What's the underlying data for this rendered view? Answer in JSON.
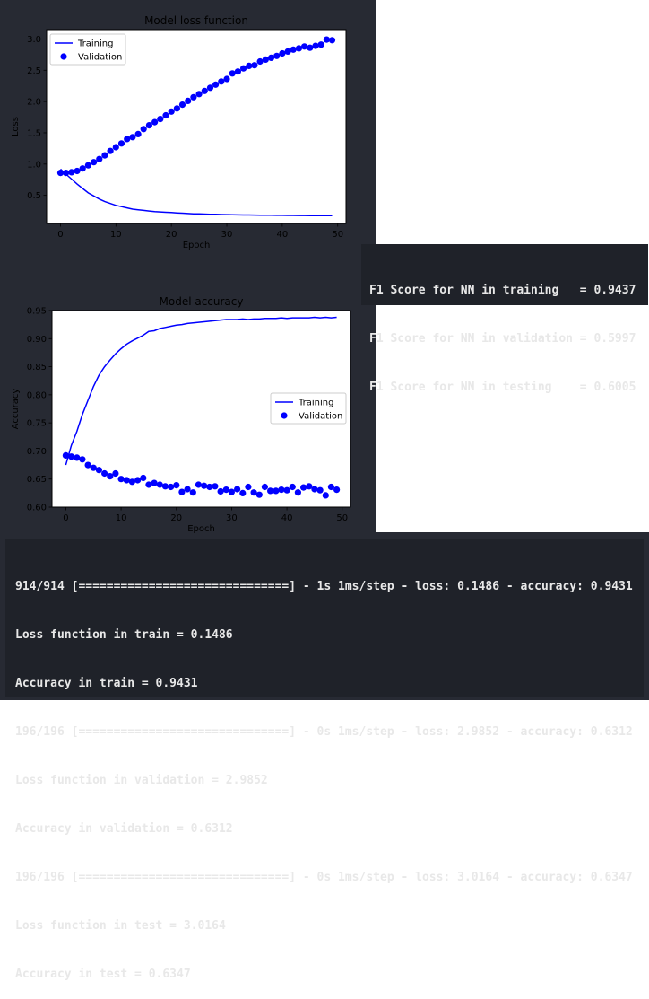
{
  "chart_data": [
    {
      "type": "line",
      "title": "Model loss function",
      "xlabel": "Epoch",
      "ylabel": "Loss",
      "xlim": [
        -2.5,
        51.5
      ],
      "ylim": [
        0.05,
        3.15
      ],
      "xticks": [
        0,
        10,
        20,
        30,
        40,
        50
      ],
      "yticks": [
        0.5,
        1.0,
        1.5,
        2.0,
        2.5,
        3.0
      ],
      "ytick_labels": [
        "0.5",
        "1.0",
        "1.5",
        "2.0",
        "2.5",
        "3.0"
      ],
      "legend": "upper-left",
      "grid": false,
      "series": [
        {
          "name": "Training",
          "style": "line",
          "color": "#0000ff",
          "x": [
            0,
            1,
            2,
            3,
            4,
            5,
            6,
            7,
            8,
            9,
            10,
            11,
            12,
            13,
            14,
            15,
            16,
            17,
            18,
            19,
            20,
            21,
            22,
            23,
            24,
            25,
            26,
            27,
            28,
            29,
            30,
            31,
            32,
            33,
            34,
            35,
            36,
            37,
            38,
            39,
            40,
            41,
            42,
            43,
            44,
            45,
            46,
            47,
            48,
            49
          ],
          "y": [
            0.92,
            0.84,
            0.76,
            0.68,
            0.61,
            0.54,
            0.49,
            0.44,
            0.4,
            0.37,
            0.34,
            0.32,
            0.3,
            0.28,
            0.27,
            0.26,
            0.25,
            0.24,
            0.235,
            0.23,
            0.225,
            0.22,
            0.215,
            0.21,
            0.205,
            0.203,
            0.2,
            0.198,
            0.196,
            0.194,
            0.192,
            0.19,
            0.188,
            0.187,
            0.186,
            0.185,
            0.184,
            0.183,
            0.182,
            0.181,
            0.18,
            0.179,
            0.179,
            0.178,
            0.178,
            0.177,
            0.177,
            0.176,
            0.176,
            0.176
          ]
        },
        {
          "name": "Validation",
          "style": "scatter",
          "color": "#0000ff",
          "x": [
            0,
            1,
            2,
            3,
            4,
            5,
            6,
            7,
            8,
            9,
            10,
            11,
            12,
            13,
            14,
            15,
            16,
            17,
            18,
            19,
            20,
            21,
            22,
            23,
            24,
            25,
            26,
            27,
            28,
            29,
            30,
            31,
            32,
            33,
            34,
            35,
            36,
            37,
            38,
            39,
            40,
            41,
            42,
            43,
            44,
            45,
            46,
            47,
            48,
            49
          ],
          "y": [
            0.86,
            0.86,
            0.87,
            0.89,
            0.93,
            0.98,
            1.03,
            1.08,
            1.14,
            1.21,
            1.27,
            1.33,
            1.4,
            1.43,
            1.48,
            1.56,
            1.62,
            1.67,
            1.72,
            1.78,
            1.84,
            1.89,
            1.95,
            2.01,
            2.07,
            2.12,
            2.17,
            2.22,
            2.27,
            2.32,
            2.36,
            2.45,
            2.48,
            2.53,
            2.57,
            2.58,
            2.64,
            2.67,
            2.7,
            2.73,
            2.77,
            2.8,
            2.83,
            2.85,
            2.88,
            2.86,
            2.89,
            2.91,
            2.99,
            2.98
          ]
        }
      ]
    },
    {
      "type": "line",
      "title": "Model accuracy",
      "xlabel": "Epoch",
      "ylabel": "Accuracy",
      "xlim": [
        -2.5,
        51.5
      ],
      "ylim": [
        0.6,
        0.95
      ],
      "xticks": [
        0,
        10,
        20,
        30,
        40,
        50
      ],
      "yticks": [
        0.6,
        0.65,
        0.7,
        0.75,
        0.8,
        0.85,
        0.9,
        0.95
      ],
      "ytick_labels": [
        "0.60",
        "0.65",
        "0.70",
        "0.75",
        "0.80",
        "0.85",
        "0.90",
        "0.95"
      ],
      "legend": "center-right",
      "grid": false,
      "series": [
        {
          "name": "Training",
          "style": "line",
          "color": "#0000ff",
          "x": [
            0,
            1,
            2,
            3,
            4,
            5,
            6,
            7,
            8,
            9,
            10,
            11,
            12,
            13,
            14,
            15,
            16,
            17,
            18,
            19,
            20,
            21,
            22,
            23,
            24,
            25,
            26,
            27,
            28,
            29,
            30,
            31,
            32,
            33,
            34,
            35,
            36,
            37,
            38,
            39,
            40,
            41,
            42,
            43,
            44,
            45,
            46,
            47,
            48,
            49
          ],
          "y": [
            0.675,
            0.71,
            0.735,
            0.765,
            0.79,
            0.815,
            0.835,
            0.85,
            0.862,
            0.873,
            0.882,
            0.89,
            0.896,
            0.901,
            0.906,
            0.913,
            0.914,
            0.918,
            0.92,
            0.922,
            0.924,
            0.925,
            0.927,
            0.928,
            0.929,
            0.93,
            0.931,
            0.932,
            0.933,
            0.934,
            0.934,
            0.934,
            0.935,
            0.934,
            0.935,
            0.935,
            0.936,
            0.936,
            0.936,
            0.937,
            0.936,
            0.937,
            0.937,
            0.937,
            0.937,
            0.938,
            0.937,
            0.938,
            0.937,
            0.938
          ]
        },
        {
          "name": "Validation",
          "style": "scatter",
          "color": "#0000ff",
          "x": [
            0,
            1,
            2,
            3,
            4,
            5,
            6,
            7,
            8,
            9,
            10,
            11,
            12,
            13,
            14,
            15,
            16,
            17,
            18,
            19,
            20,
            21,
            22,
            23,
            24,
            25,
            26,
            27,
            28,
            29,
            30,
            31,
            32,
            33,
            34,
            35,
            36,
            37,
            38,
            39,
            40,
            41,
            42,
            43,
            44,
            45,
            46,
            47,
            48,
            49
          ],
          "y": [
            0.692,
            0.69,
            0.688,
            0.685,
            0.675,
            0.67,
            0.666,
            0.66,
            0.655,
            0.66,
            0.65,
            0.648,
            0.645,
            0.648,
            0.652,
            0.64,
            0.643,
            0.64,
            0.637,
            0.636,
            0.639,
            0.627,
            0.632,
            0.626,
            0.64,
            0.638,
            0.636,
            0.637,
            0.628,
            0.631,
            0.627,
            0.632,
            0.625,
            0.636,
            0.626,
            0.622,
            0.636,
            0.629,
            0.629,
            0.631,
            0.63,
            0.636,
            0.626,
            0.635,
            0.637,
            0.632,
            0.63,
            0.621,
            0.636,
            0.631
          ]
        }
      ]
    }
  ],
  "f1_output": [
    "F1 Score for NN in training   = 0.9437",
    "F1 Score for NN in validation = 0.5997",
    "F1 Score for NN in testing    = 0.6005"
  ],
  "eval_output": [
    "914/914 [==============================] - 1s 1ms/step - loss: 0.1486 - accuracy: 0.9431",
    "Loss function in train = 0.1486",
    "Accuracy in train = 0.9431",
    "196/196 [==============================] - 0s 1ms/step - loss: 2.9852 - accuracy: 0.6312",
    "Loss function in validation = 2.9852",
    "Accuracy in validation = 0.6312",
    "196/196 [==============================] - 0s 1ms/step - loss: 3.0164 - accuracy: 0.6347",
    "Loss function in test = 3.0164",
    "Accuracy in test = 0.6347"
  ]
}
